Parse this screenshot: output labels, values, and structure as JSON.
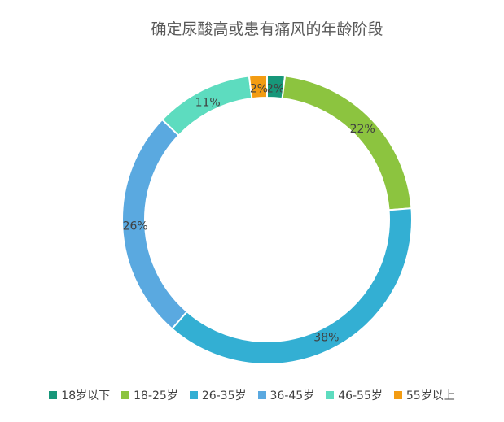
{
  "chart_data": {
    "type": "donut",
    "title": "确定尿酸高或患有痛风的年龄阶段",
    "categories": [
      "18岁以下",
      "18-25岁",
      "26-35岁",
      "36-45岁",
      "46-55岁",
      "55岁以上"
    ],
    "values": [
      2,
      22,
      38,
      26,
      11,
      2
    ],
    "value_labels": [
      "2%",
      "22%",
      "38%",
      "26%",
      "11%",
      "2%"
    ],
    "colors": [
      "#17977a",
      "#8cc43f",
      "#33afd3",
      "#5aa9e0",
      "#5ddcbf",
      "#f39c12"
    ],
    "legend": "bottom"
  }
}
